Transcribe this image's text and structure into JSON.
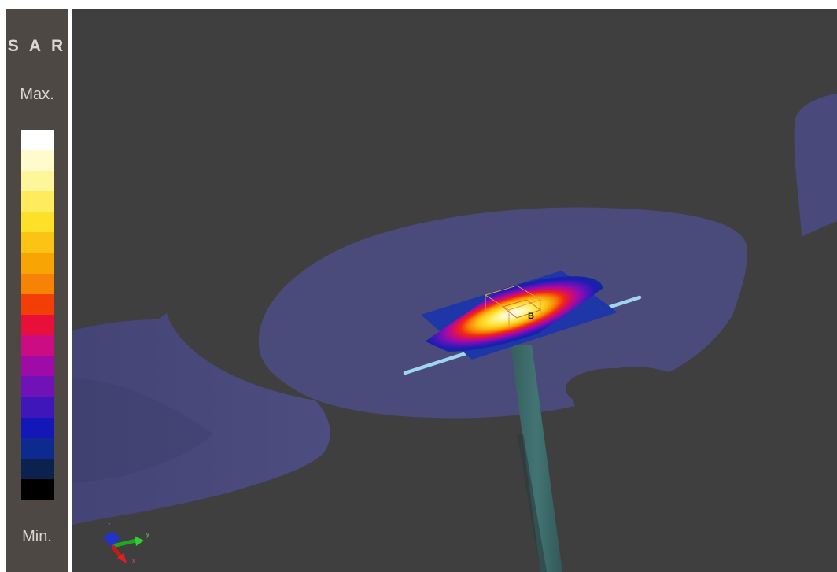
{
  "legend": {
    "title": "S A R",
    "max_label": "Max.",
    "min_label": "Min.",
    "colorbar": [
      "#ffffff",
      "#fffbcc",
      "#fff59a",
      "#ffec5c",
      "#fde02a",
      "#fbc414",
      "#f9a405",
      "#f68206",
      "#f33e05",
      "#e8103a",
      "#cc0c82",
      "#9f0ba7",
      "#7012b8",
      "#3f16b9",
      "#1417b8",
      "#0e2a8f",
      "#0b214e",
      "#000000"
    ]
  },
  "scene": {
    "background": "#3f3f3f",
    "phantom_color": "#4b4b82",
    "probe_color": "#3e6b6a",
    "dipole_color": "#9fd6ee",
    "marker_label": "B",
    "axes": {
      "x_label": "x",
      "y_label": "y",
      "z_label": "z"
    }
  }
}
